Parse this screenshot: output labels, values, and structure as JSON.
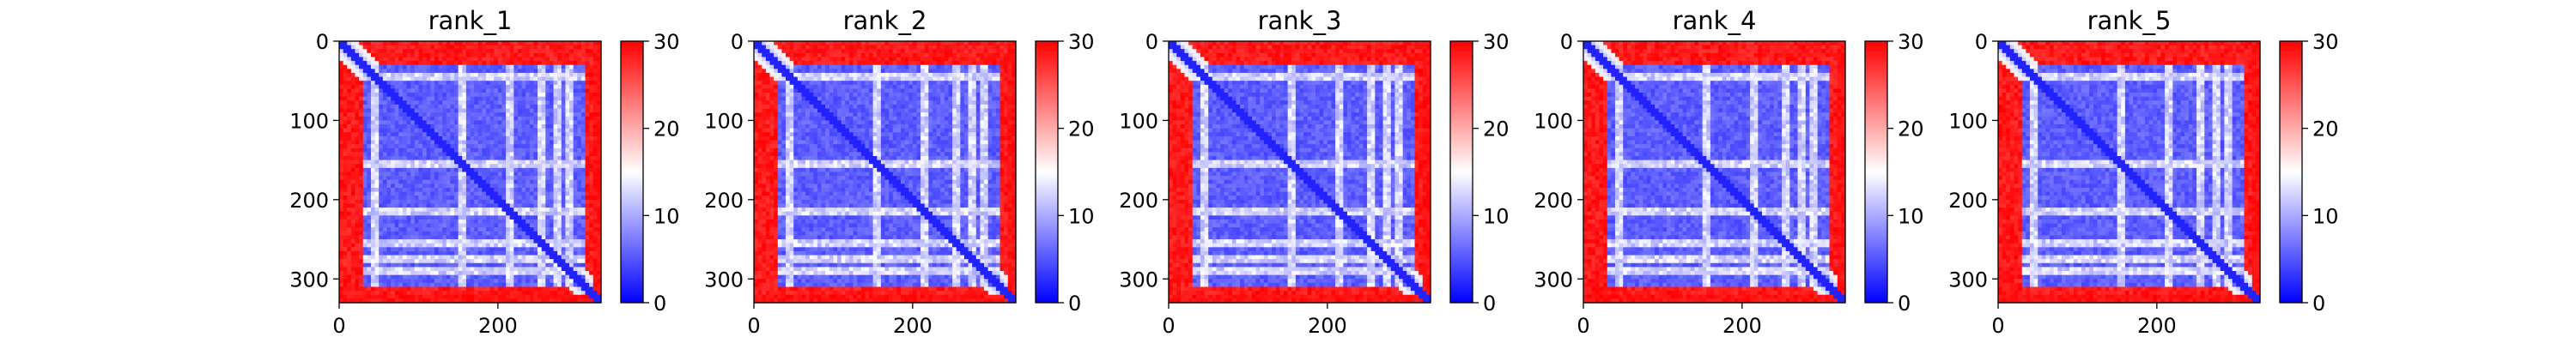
{
  "chart_data": [
    {
      "type": "heatmap",
      "title": "rank_1",
      "x_range": [
        0,
        330
      ],
      "y_range": [
        0,
        330
      ],
      "y_inverted": true,
      "x_ticks": [
        0,
        200
      ],
      "x_tick_labels": [
        "0",
        "200"
      ],
      "y_ticks": [
        0,
        100,
        200,
        300
      ],
      "y_tick_labels": [
        "0",
        "100",
        "200",
        "300"
      ],
      "colorbar": {
        "range": [
          0,
          30
        ],
        "ticks": [
          0,
          10,
          20,
          30
        ],
        "tick_labels": [
          "0",
          "10",
          "20",
          "30"
        ],
        "colormap": "bwr"
      },
      "high_value_rows": [
        320,
        330
      ],
      "low_value_block": [
        30,
        310
      ],
      "bright_rows": [
        45,
        155,
        215,
        255,
        275,
        290
      ]
    },
    {
      "type": "heatmap",
      "title": "rank_2",
      "x_range": [
        0,
        330
      ],
      "y_range": [
        0,
        330
      ],
      "y_inverted": true,
      "x_ticks": [
        0,
        200
      ],
      "x_tick_labels": [
        "0",
        "200"
      ],
      "y_ticks": [
        0,
        100,
        200,
        300
      ],
      "y_tick_labels": [
        "0",
        "100",
        "200",
        "300"
      ],
      "colorbar": {
        "range": [
          0,
          30
        ],
        "ticks": [
          0,
          10,
          20,
          30
        ],
        "tick_labels": [
          "0",
          "10",
          "20",
          "30"
        ],
        "colormap": "bwr"
      },
      "high_value_rows": [
        320,
        330
      ],
      "low_value_block": [
        30,
        310
      ],
      "bright_rows": [
        45,
        155,
        215,
        255,
        275,
        290
      ]
    },
    {
      "type": "heatmap",
      "title": "rank_3",
      "x_range": [
        0,
        330
      ],
      "y_range": [
        0,
        330
      ],
      "y_inverted": true,
      "x_ticks": [
        0,
        200
      ],
      "x_tick_labels": [
        "0",
        "200"
      ],
      "y_ticks": [
        0,
        100,
        200,
        300
      ],
      "y_tick_labels": [
        "0",
        "100",
        "200",
        "300"
      ],
      "colorbar": {
        "range": [
          0,
          30
        ],
        "ticks": [
          0,
          10,
          20,
          30
        ],
        "tick_labels": [
          "0",
          "10",
          "20",
          "30"
        ],
        "colormap": "bwr"
      },
      "high_value_rows": [
        320,
        330
      ],
      "low_value_block": [
        30,
        310
      ],
      "bright_rows": [
        45,
        155,
        215,
        255,
        275,
        290
      ]
    },
    {
      "type": "heatmap",
      "title": "rank_4",
      "x_range": [
        0,
        330
      ],
      "y_range": [
        0,
        330
      ],
      "y_inverted": true,
      "x_ticks": [
        0,
        200
      ],
      "x_tick_labels": [
        "0",
        "200"
      ],
      "y_ticks": [
        0,
        100,
        200,
        300
      ],
      "y_tick_labels": [
        "0",
        "100",
        "200",
        "300"
      ],
      "colorbar": {
        "range": [
          0,
          30
        ],
        "ticks": [
          0,
          10,
          20,
          30
        ],
        "tick_labels": [
          "0",
          "10",
          "20",
          "30"
        ],
        "colormap": "bwr"
      },
      "high_value_rows": [
        320,
        330
      ],
      "low_value_block": [
        30,
        310
      ],
      "bright_rows": [
        45,
        155,
        215,
        255,
        275,
        290
      ]
    },
    {
      "type": "heatmap",
      "title": "rank_5",
      "x_range": [
        0,
        330
      ],
      "y_range": [
        0,
        330
      ],
      "y_inverted": true,
      "x_ticks": [
        0,
        200
      ],
      "x_tick_labels": [
        "0",
        "200"
      ],
      "y_ticks": [
        0,
        100,
        200,
        300
      ],
      "y_tick_labels": [
        "0",
        "100",
        "200",
        "300"
      ],
      "colorbar": {
        "range": [
          0,
          30
        ],
        "ticks": [
          0,
          10,
          20,
          30
        ],
        "tick_labels": [
          "0",
          "10",
          "20",
          "30"
        ],
        "colormap": "bwr"
      },
      "high_value_rows": [
        320,
        330
      ],
      "low_value_block": [
        30,
        310
      ],
      "bright_rows": [
        45,
        155,
        215,
        255,
        275,
        290
      ]
    }
  ]
}
